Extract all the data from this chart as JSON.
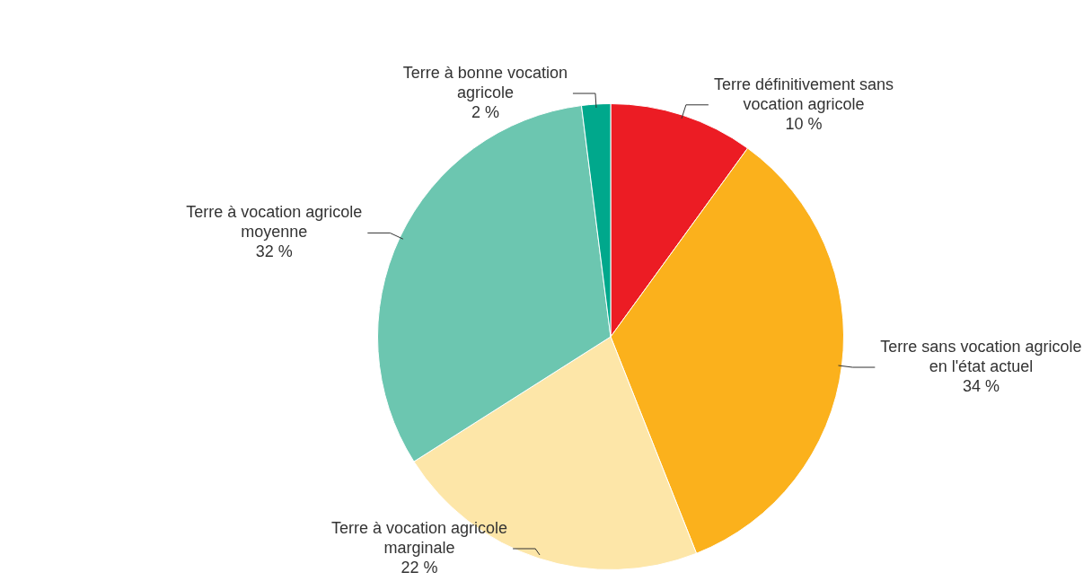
{
  "chart_data": {
    "type": "pie",
    "categories": [
      "Terre définitivement sans vocation agricole",
      "Terre sans vocation agricole en l'état actuel",
      "Terre à vocation agricole marginale",
      "Terre à vocation agricole moyenne",
      "Terre à bonne vocation agricole"
    ],
    "values": [
      10,
      34,
      22,
      32,
      2
    ],
    "value_labels": [
      "10 %",
      "34 %",
      "22 %",
      "32 %",
      "2 %"
    ],
    "colors": [
      "#ec1c24",
      "#fbb11c",
      "#fde6a8",
      "#6cc6b0",
      "#00a88c"
    ],
    "legend": false
  }
}
